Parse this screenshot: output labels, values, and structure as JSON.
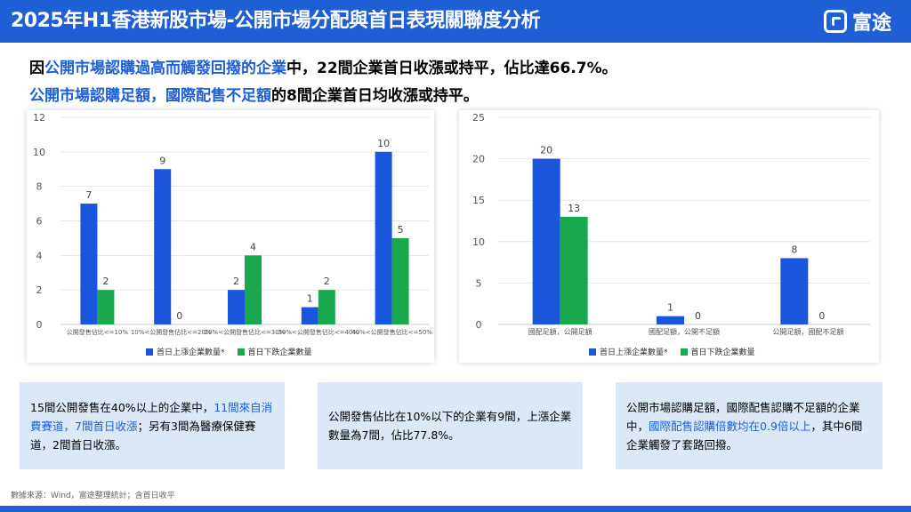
{
  "header": {
    "title": "2025年H1香港新股市場-公開市場分配與首日表現關聯度分析",
    "logo_text": "富途"
  },
  "headline": {
    "line1_a": "因",
    "line1_b": "公開市場認購過高而觸發回撥的企業",
    "line1_c": "中，22間企業首日收漲或持平，佔比達66.7%。",
    "line2_a": "公開市場認購足額，國際配售不足額",
    "line2_b": "的8間企業首日均收漲或持平。"
  },
  "colors": {
    "header": "#1f5fd6",
    "rise": "#1a56db",
    "fall": "#1aa84f",
    "note_bg": "#dbe8f6",
    "highlight": "#1f5fd6"
  },
  "chart_data": [
    {
      "type": "bar",
      "categories": [
        "公開發售佔比<=10%",
        "10%<公開發售佔比<=20%",
        "20%<公開發售佔比<=30%",
        "30%<公開發售佔比<=40%",
        "40%<公開發售佔比<=50%"
      ],
      "series": [
        {
          "name": "首日上漲企業數量*",
          "values": [
            7,
            9,
            2,
            1,
            10
          ]
        },
        {
          "name": "首日下跌企業數量",
          "values": [
            2,
            0,
            4,
            2,
            5
          ]
        }
      ],
      "ylim": [
        0,
        12
      ],
      "yticks": [
        0,
        2,
        4,
        6,
        8,
        10,
        12
      ],
      "legend": "bottom",
      "grid": true
    },
    {
      "type": "bar",
      "categories": [
        "國配足額，公開足額",
        "國配足額，公開不足額",
        "公開足額，國配不足額"
      ],
      "series": [
        {
          "name": "首日上漲企業數量*",
          "values": [
            20,
            1,
            8
          ]
        },
        {
          "name": "首日下跌企業數量",
          "values": [
            13,
            0,
            0
          ]
        }
      ],
      "ylim": [
        0,
        25
      ],
      "yticks": [
        0,
        5,
        10,
        15,
        20,
        25
      ],
      "legend": "bottom",
      "grid": true
    }
  ],
  "notes": {
    "left_a": "15間公開發售在40%以上的企業中，",
    "left_b": "11間來自消費賽道，7間首日收漲",
    "left_c": "；另有3間為醫療保健賽道，2間首日收漲。",
    "middle": "公開發售佔比在10%以下的企業有9間，上漲企業數量為7間，佔比77.8%。",
    "right_a": "公開市場認購足額，國際配售認購不足額的企業中，",
    "right_b": "國際配售認購倍數均在0.9倍以上",
    "right_c": "，其中6間企業觸發了套路回撥。"
  },
  "source": "數據來源：Wind，富途整理統計；含首日收平"
}
